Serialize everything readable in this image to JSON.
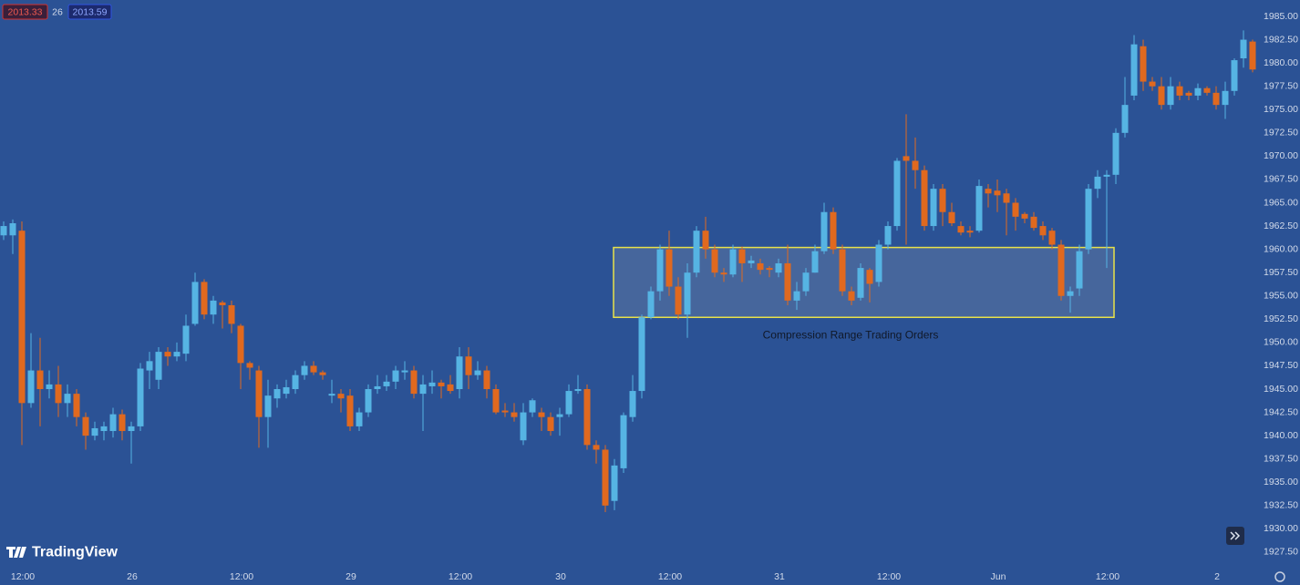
{
  "chart_data": {
    "type": "candlestick",
    "price_tags": {
      "sell": "2013.33",
      "spread": "26",
      "buy": "2013.59"
    },
    "watermark": "TradingView",
    "annotation": {
      "text": "Compression Range Trading Orders",
      "low": 1952.7,
      "high": 1960.2,
      "color": "#e8e24a"
    },
    "up_color": "#56b4e3",
    "down_color": "#e0691f",
    "background": "#2b5295",
    "ylim": [
      1925.93,
      1986.76
    ],
    "yticks": [
      {
        "value": 1985,
        "label": "1985.00"
      },
      {
        "value": 1982.5,
        "label": "1982.50"
      },
      {
        "value": 1980,
        "label": "1980.00"
      },
      {
        "value": 1977.5,
        "label": "1977.50"
      },
      {
        "value": 1975,
        "label": "1975.00"
      },
      {
        "value": 1972.5,
        "label": "1972.50"
      },
      {
        "value": 1970,
        "label": "1970.00"
      },
      {
        "value": 1967.5,
        "label": "1967.50"
      },
      {
        "value": 1965,
        "label": "1965.00"
      },
      {
        "value": 1962.5,
        "label": "1962.50"
      },
      {
        "value": 1960,
        "label": "1960.00"
      },
      {
        "value": 1957.5,
        "label": "1957.50"
      },
      {
        "value": 1955,
        "label": "1955.00"
      },
      {
        "value": 1952.5,
        "label": "1952.50"
      },
      {
        "value": 1950,
        "label": "1950.00"
      },
      {
        "value": 1947.5,
        "label": "1947.50"
      },
      {
        "value": 1945,
        "label": "1945.00"
      },
      {
        "value": 1942.5,
        "label": "1942.50"
      },
      {
        "value": 1940,
        "label": "1940.00"
      },
      {
        "value": 1937.5,
        "label": "1937.50"
      },
      {
        "value": 1935,
        "label": "1935.00"
      },
      {
        "value": 1932.5,
        "label": "1932.50"
      },
      {
        "value": 1930,
        "label": "1930.00"
      },
      {
        "value": 1927.5,
        "label": "1927.50"
      }
    ],
    "categories": [
      null,
      null,
      "12:00",
      null,
      null,
      null,
      null,
      null,
      null,
      null,
      null,
      null,
      null,
      null,
      "26",
      null,
      null,
      null,
      null,
      null,
      null,
      null,
      null,
      null,
      null,
      null,
      "12:00",
      null,
      null,
      null,
      null,
      null,
      null,
      null,
      null,
      null,
      null,
      null,
      "29",
      null,
      null,
      null,
      null,
      null,
      null,
      null,
      null,
      null,
      null,
      null,
      "12:00",
      null,
      null,
      null,
      null,
      null,
      null,
      null,
      null,
      null,
      null,
      "30",
      null,
      null,
      null,
      null,
      null,
      null,
      null,
      null,
      null,
      null,
      null,
      "12:00",
      null,
      null,
      null,
      null,
      null,
      null,
      null,
      null,
      null,
      null,
      null,
      "31",
      null,
      null,
      null,
      null,
      null,
      null,
      null,
      null,
      null,
      null,
      null,
      "12:00",
      null,
      null,
      null,
      null,
      null,
      null,
      null,
      null,
      null,
      null,
      null,
      "Jun",
      null,
      null,
      null,
      null,
      null,
      null,
      null,
      null,
      null,
      null,
      null,
      "12:00",
      null,
      null,
      null,
      null,
      null,
      null,
      null,
      null,
      null,
      null,
      null,
      "2",
      null,
      null,
      null,
      null
    ],
    "open": [
      1961.5,
      1961.5,
      1962,
      1943.5,
      1947,
      1945,
      1945.5,
      1943.5,
      1944.5,
      1942,
      1940,
      1940.5,
      1940.5,
      1942.3,
      1940.5,
      1941,
      1947,
      1946,
      1949,
      1948.5,
      1948.8,
      1952,
      1956.5,
      1953,
      1954.3,
      1954,
      1951.8,
      1947.8,
      1947,
      1942,
      1944,
      1944.5,
      1945,
      1946.5,
      1947.5,
      1946.8,
      1944.3,
      1944.5,
      1944.3,
      1941,
      1942.5,
      1945,
      1945.3,
      1945.8,
      1946.8,
      1947,
      1944.5,
      1945.3,
      1945.7,
      1945.5,
      1945,
      1948.5,
      1946.5,
      1947,
      1945,
      1942.7,
      1942.5,
      1939.5,
      1942.5,
      1942.5,
      1942,
      1942,
      1942.3,
      1944.8,
      1945,
      1939,
      1938.5,
      1933,
      1936.5,
      1942,
      1944.8,
      1952.7,
      1955.5,
      1960,
      1956,
      1953,
      1957.5,
      1962,
      1960,
      1957.5,
      1957.3,
      1960,
      1958.5,
      1958.5,
      1958,
      1957.5,
      1958.5,
      1954.5,
      1955.5,
      1957.5,
      1959.8,
      1964,
      1960,
      1955.5,
      1954.8,
      1957.8,
      1956.5,
      1960.5,
      1962.5,
      1970,
      1969.5,
      1968.5,
      1962.5,
      1966.5,
      1964,
      1962.5,
      1962,
      1962,
      1966.5,
      1966.3,
      1966,
      1965,
      1963.8,
      1963.5,
      1962.5,
      1962,
      1960.5,
      1955,
      1955.8,
      1960,
      1966.5,
      1967.8,
      1968,
      1972.5,
      1976.5,
      1981.8,
      1978,
      1977.5,
      1975.5,
      1977.5,
      1976.8,
      1976.5,
      1977.3,
      1976.8,
      1975.5,
      1977,
      1980.5,
      1982.3
    ],
    "high": [
      1963,
      1963.2,
      1963,
      1951,
      1950.5,
      1947,
      1947.5,
      1945.5,
      1945,
      1942.5,
      1941.5,
      1941.5,
      1943,
      1942.8,
      1941.5,
      1947.8,
      1949,
      1949.5,
      1949.5,
      1950,
      1953,
      1957.5,
      1956.8,
      1955,
      1954.5,
      1954.5,
      1952,
      1948,
      1947.5,
      1946,
      1945.5,
      1946,
      1947,
      1948,
      1948,
      1947,
      1946,
      1945,
      1945,
      1943,
      1945.5,
      1946.5,
      1946.5,
      1947.5,
      1948,
      1947.5,
      1946.5,
      1947,
      1946,
      1946.5,
      1949.5,
      1949.5,
      1948,
      1947.5,
      1945.5,
      1943.5,
      1943.5,
      1943.5,
      1944,
      1943,
      1942.5,
      1943,
      1945.5,
      1946.5,
      1945.5,
      1939.5,
      1939,
      1937.5,
      1942.5,
      1946.5,
      1953,
      1956,
      1960.5,
      1962,
      1957,
      1958.5,
      1962.5,
      1963.5,
      1960.5,
      1958,
      1960.5,
      1960.3,
      1959.3,
      1959,
      1958.2,
      1959,
      1960.5,
      1956.5,
      1958,
      1960.5,
      1965,
      1964.5,
      1960.5,
      1956,
      1958.5,
      1958,
      1961,
      1963,
      1969.8,
      1974.5,
      1972,
      1969,
      1967,
      1967,
      1965,
      1963,
      1962.5,
      1967.5,
      1967,
      1967.5,
      1966.5,
      1965.5,
      1964,
      1964,
      1963,
      1962.3,
      1961,
      1956,
      1960.5,
      1967,
      1968.5,
      1968.5,
      1973,
      1978.5,
      1983,
      1982.5,
      1978.5,
      1978.5,
      1978.5,
      1978,
      1977,
      1977.8,
      1977.5,
      1977.5,
      1978,
      1980.5,
      1983.5,
      1982.5
    ],
    "low": [
      1961,
      1959.5,
      1939,
      1943,
      1941,
      1944,
      1942,
      1942,
      1941,
      1938.5,
      1939.5,
      1939.5,
      1939.8,
      1939.5,
      1937,
      1940.5,
      1945,
      1945,
      1947.5,
      1948,
      1948,
      1951.8,
      1952.5,
      1952,
      1951.5,
      1951,
      1945,
      1946,
      1938.7,
      1938.7,
      1943,
      1944,
      1944.5,
      1946,
      1946.5,
      1946,
      1943.5,
      1942.5,
      1940.5,
      1940.5,
      1942,
      1944.5,
      1944.8,
      1945,
      1946,
      1944,
      1940.5,
      1944.5,
      1944,
      1944.5,
      1944,
      1945,
      1946,
      1944,
      1942.3,
      1942,
      1941.5,
      1939,
      1942,
      1940.5,
      1940,
      1940,
      1942,
      1944.5,
      1938.5,
      1937,
      1931.8,
      1932,
      1936,
      1941.5,
      1944,
      1952.5,
      1954.5,
      1955,
      1952.5,
      1950.5,
      1957,
      1959,
      1957,
      1956.5,
      1957,
      1956.5,
      1958,
      1957.3,
      1957,
      1957,
      1954,
      1953.5,
      1955,
      1957.5,
      1959.5,
      1959.5,
      1955,
      1954,
      1954.5,
      1954.3,
      1956,
      1960,
      1962,
      1960.5,
      1966.5,
      1962,
      1962,
      1962.5,
      1962.5,
      1961.5,
      1961.3,
      1961.8,
      1964.5,
      1964,
      1961.5,
      1962,
      1962.8,
      1962,
      1961,
      1960,
      1954.5,
      1953.2,
      1955,
      1959.5,
      1965.5,
      1958,
      1967,
      1972,
      1976,
      1977,
      1977,
      1975,
      1975,
      1976,
      1976,
      1976,
      1976.5,
      1975,
      1974,
      1976.5,
      1979.5,
      1979
    ],
    "close": [
      1962.5,
      1962.8,
      1943.5,
      1947,
      1945,
      1945.5,
      1943.5,
      1944.5,
      1942,
      1940,
      1940.8,
      1941,
      1942.3,
      1940.5,
      1941,
      1947.2,
      1948,
      1949,
      1948.5,
      1949,
      1951.8,
      1956.5,
      1953,
      1954.5,
      1954,
      1952,
      1947.8,
      1947.3,
      1942,
      1944.3,
      1945,
      1945.2,
      1946.5,
      1947.5,
      1946.8,
      1946.5,
      1944.5,
      1944,
      1941,
      1942.5,
      1945,
      1945.3,
      1945.8,
      1947,
      1947,
      1944.5,
      1945.5,
      1945.7,
      1945.3,
      1944.8,
      1948.5,
      1946.5,
      1947,
      1945,
      1942.5,
      1942.5,
      1942,
      1942.5,
      1943.8,
      1942,
      1940.5,
      1942.3,
      1944.8,
      1945,
      1939,
      1938.5,
      1932.5,
      1936.8,
      1942.2,
      1944.8,
      1952.7,
      1955.5,
      1960,
      1956,
      1953,
      1957.5,
      1962,
      1960,
      1957.5,
      1957.3,
      1960,
      1958.5,
      1958.8,
      1957.8,
      1957.8,
      1958.5,
      1954.5,
      1955.5,
      1957.5,
      1959.8,
      1964,
      1960,
      1955.5,
      1954.5,
      1958,
      1956.3,
      1960.5,
      1962.5,
      1969.5,
      1969.5,
      1968.5,
      1962.5,
      1966.5,
      1964,
      1962.8,
      1961.8,
      1961.8,
      1966.8,
      1966,
      1965.8,
      1965,
      1963.5,
      1963.3,
      1962.3,
      1961.5,
      1960.5,
      1955,
      1955.5,
      1959.8,
      1966.5,
      1967.8,
      1968,
      1972.5,
      1975.5,
      1982,
      1978,
      1977.5,
      1975.5,
      1977.5,
      1976.5,
      1976.5,
      1977.3,
      1976.8,
      1975.5,
      1977,
      1980.3,
      1982.5,
      1979.3
    ]
  }
}
